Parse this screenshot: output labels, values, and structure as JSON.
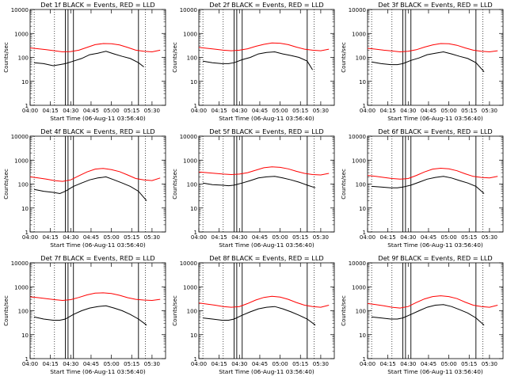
{
  "colors": {
    "events": "#000000",
    "lld": "#ff0000",
    "axes": "#000000",
    "background": "#ffffff"
  },
  "chart_data": [
    {
      "type": "line",
      "title": "Det 1f BLACK = Events, RED = LLD",
      "xlabel": "Start Time (06-Aug-11 03:56:40)",
      "ylabel": "Counts/sec",
      "xlim": [
        "04:00",
        "05:40"
      ],
      "ylim": [
        1,
        10000
      ],
      "y_scale": "log",
      "x_ticks": [
        "04:00",
        "04:15",
        "04:30",
        "04:45",
        "05:00",
        "05:15",
        "05:30"
      ],
      "y_ticks": [
        "1",
        "10",
        "100",
        "1000",
        "10000"
      ],
      "dotted_vlines": [
        "04:03",
        "04:18",
        "05:25"
      ],
      "solid_vlines": [
        "04:26",
        "04:28",
        "04:32",
        "05:20"
      ],
      "series": [
        {
          "name": "Events",
          "x": [
            "04:03",
            "04:10",
            "04:17",
            "04:22",
            "04:26",
            "04:32",
            "04:38",
            "04:44",
            "04:50",
            "04:56",
            "05:02",
            "05:08",
            "05:14",
            "05:20",
            "05:24"
          ],
          "values": [
            60,
            55,
            45,
            50,
            55,
            70,
            90,
            130,
            150,
            180,
            140,
            110,
            90,
            60,
            40
          ]
        },
        {
          "name": "LLD",
          "x": [
            "04:00",
            "04:06",
            "04:12",
            "04:18",
            "04:24",
            "04:30",
            "04:36",
            "04:42",
            "04:48",
            "04:54",
            "05:00",
            "05:06",
            "05:12",
            "05:18",
            "05:24",
            "05:30",
            "05:36"
          ],
          "values": [
            250,
            230,
            210,
            190,
            170,
            175,
            200,
            260,
            340,
            380,
            370,
            330,
            260,
            200,
            180,
            170,
            200
          ]
        }
      ]
    },
    {
      "type": "line",
      "title": "Det 2f BLACK = Events, RED = LLD",
      "xlabel": "Start Time (06-Aug-11 03:56:40)",
      "ylabel": "Counts/sec",
      "xlim": [
        "04:00",
        "05:40"
      ],
      "ylim": [
        1,
        10000
      ],
      "y_scale": "log",
      "x_ticks": [
        "04:00",
        "04:15",
        "04:30",
        "04:45",
        "05:00",
        "05:15",
        "05:30"
      ],
      "y_ticks": [
        "1",
        "10",
        "100",
        "1000",
        "10000"
      ],
      "dotted_vlines": [
        "04:03",
        "04:18",
        "05:25"
      ],
      "solid_vlines": [
        "04:26",
        "04:28",
        "04:32",
        "05:20"
      ],
      "series": [
        {
          "name": "Events",
          "x": [
            "04:03",
            "04:10",
            "04:17",
            "04:22",
            "04:26",
            "04:32",
            "04:38",
            "04:44",
            "04:50",
            "04:56",
            "05:02",
            "05:08",
            "05:14",
            "05:20",
            "05:24"
          ],
          "values": [
            70,
            60,
            55,
            55,
            60,
            80,
            100,
            140,
            160,
            170,
            140,
            120,
            100,
            70,
            30
          ]
        },
        {
          "name": "LLD",
          "x": [
            "04:00",
            "04:06",
            "04:12",
            "04:18",
            "04:24",
            "04:30",
            "04:36",
            "04:42",
            "04:48",
            "04:54",
            "05:00",
            "05:06",
            "05:12",
            "05:18",
            "05:24",
            "05:30",
            "05:36"
          ],
          "values": [
            260,
            240,
            220,
            200,
            190,
            200,
            230,
            290,
            350,
            400,
            390,
            340,
            270,
            220,
            200,
            190,
            220
          ]
        }
      ]
    },
    {
      "type": "line",
      "title": "Det 3f BLACK = Events, RED = LLD",
      "xlabel": "Start Time (06-Aug-11 03:56:40)",
      "ylabel": "Counts/sec",
      "xlim": [
        "04:00",
        "05:40"
      ],
      "ylim": [
        1,
        10000
      ],
      "y_scale": "log",
      "x_ticks": [
        "04:00",
        "04:15",
        "04:30",
        "04:45",
        "05:00",
        "05:15",
        "05:30"
      ],
      "y_ticks": [
        "1",
        "10",
        "100",
        "1000",
        "10000"
      ],
      "dotted_vlines": [
        "04:03",
        "04:18",
        "05:25"
      ],
      "solid_vlines": [
        "04:26",
        "04:28",
        "04:32",
        "05:20"
      ],
      "series": [
        {
          "name": "Events",
          "x": [
            "04:03",
            "04:10",
            "04:17",
            "04:22",
            "04:26",
            "04:32",
            "04:38",
            "04:44",
            "04:50",
            "04:56",
            "05:02",
            "05:08",
            "05:14",
            "05:20",
            "05:26"
          ],
          "values": [
            65,
            55,
            50,
            50,
            55,
            75,
            95,
            130,
            150,
            170,
            140,
            110,
            90,
            60,
            25
          ]
        },
        {
          "name": "LLD",
          "x": [
            "04:00",
            "04:06",
            "04:12",
            "04:18",
            "04:24",
            "04:30",
            "04:36",
            "04:42",
            "04:48",
            "04:54",
            "05:00",
            "05:06",
            "05:12",
            "05:18",
            "05:24",
            "05:30",
            "05:36"
          ],
          "values": [
            240,
            220,
            200,
            185,
            170,
            180,
            210,
            270,
            330,
            380,
            370,
            320,
            250,
            200,
            180,
            170,
            190
          ]
        }
      ]
    },
    {
      "type": "line",
      "title": "Det 4f BLACK = Events, RED = LLD",
      "xlabel": "Start Time (06-Aug-11 03:56:40)",
      "ylabel": "Counts/sec",
      "xlim": [
        "04:00",
        "05:40"
      ],
      "ylim": [
        1,
        10000
      ],
      "y_scale": "log",
      "x_ticks": [
        "04:00",
        "04:15",
        "04:30",
        "04:45",
        "05:00",
        "05:15",
        "05:30"
      ],
      "y_ticks": [
        "1",
        "10",
        "100",
        "1000",
        "10000"
      ],
      "dotted_vlines": [
        "04:03",
        "04:18",
        "05:25"
      ],
      "solid_vlines": [
        "04:26",
        "04:28",
        "04:32",
        "05:20"
      ],
      "series": [
        {
          "name": "Events",
          "x": [
            "04:03",
            "04:10",
            "04:17",
            "04:22",
            "04:26",
            "04:32",
            "04:38",
            "04:44",
            "04:50",
            "04:56",
            "05:02",
            "05:08",
            "05:14",
            "05:20",
            "05:26"
          ],
          "values": [
            60,
            50,
            45,
            40,
            50,
            80,
            110,
            150,
            180,
            200,
            150,
            110,
            80,
            50,
            20
          ]
        },
        {
          "name": "LLD",
          "x": [
            "04:00",
            "04:06",
            "04:12",
            "04:18",
            "04:24",
            "04:30",
            "04:36",
            "04:42",
            "04:48",
            "04:54",
            "05:00",
            "05:06",
            "05:12",
            "05:18",
            "05:24",
            "05:30",
            "05:36"
          ],
          "values": [
            200,
            180,
            160,
            140,
            130,
            150,
            220,
            320,
            420,
            450,
            400,
            330,
            240,
            170,
            150,
            140,
            180
          ]
        }
      ]
    },
    {
      "type": "line",
      "title": "Det 5f BLACK = Events, RED = LLD",
      "xlabel": "Start Time (06-Aug-11 03:56:40)",
      "ylabel": "Counts/sec",
      "xlim": [
        "04:00",
        "05:40"
      ],
      "ylim": [
        1,
        10000
      ],
      "y_scale": "log",
      "x_ticks": [
        "04:00",
        "04:15",
        "04:30",
        "04:45",
        "05:00",
        "05:15",
        "05:30"
      ],
      "y_ticks": [
        "1",
        "10",
        "100",
        "1000",
        "10000"
      ],
      "dotted_vlines": [
        "04:03",
        "04:18",
        "05:25"
      ],
      "solid_vlines": [
        "04:26",
        "04:28",
        "04:32",
        "05:20"
      ],
      "series": [
        {
          "name": "Events",
          "x": [
            "04:03",
            "04:10",
            "04:17",
            "04:22",
            "04:26",
            "04:32",
            "04:38",
            "04:44",
            "04:50",
            "04:56",
            "05:02",
            "05:08",
            "05:14",
            "05:20",
            "05:26"
          ],
          "values": [
            110,
            95,
            90,
            85,
            90,
            110,
            140,
            180,
            200,
            210,
            180,
            150,
            120,
            90,
            70
          ]
        },
        {
          "name": "LLD",
          "x": [
            "04:00",
            "04:06",
            "04:12",
            "04:18",
            "04:24",
            "04:30",
            "04:36",
            "04:42",
            "04:48",
            "04:54",
            "05:00",
            "05:06",
            "05:12",
            "05:18",
            "05:24",
            "05:30",
            "05:36"
          ],
          "values": [
            320,
            300,
            280,
            260,
            250,
            260,
            300,
            380,
            480,
            520,
            500,
            430,
            340,
            280,
            250,
            240,
            280
          ]
        }
      ]
    },
    {
      "type": "line",
      "title": "Det 6f BLACK = Events, RED = LLD",
      "xlabel": "Start Time (06-Aug-11 03:56:40)",
      "ylabel": "Counts/sec",
      "xlim": [
        "04:00",
        "05:40"
      ],
      "ylim": [
        1,
        10000
      ],
      "y_scale": "log",
      "x_ticks": [
        "04:00",
        "04:15",
        "04:30",
        "04:45",
        "05:00",
        "05:15",
        "05:30"
      ],
      "y_ticks": [
        "1",
        "10",
        "100",
        "1000",
        "10000"
      ],
      "dotted_vlines": [
        "04:03",
        "04:18",
        "05:25"
      ],
      "solid_vlines": [
        "04:26",
        "04:28",
        "04:32",
        "05:20"
      ],
      "series": [
        {
          "name": "Events",
          "x": [
            "04:03",
            "04:10",
            "04:17",
            "04:22",
            "04:26",
            "04:32",
            "04:38",
            "04:44",
            "04:50",
            "04:56",
            "05:02",
            "05:08",
            "05:14",
            "05:20",
            "05:26"
          ],
          "values": [
            80,
            75,
            70,
            70,
            75,
            90,
            120,
            160,
            190,
            210,
            180,
            140,
            110,
            80,
            40
          ]
        },
        {
          "name": "LLD",
          "x": [
            "04:00",
            "04:06",
            "04:12",
            "04:18",
            "04:24",
            "04:30",
            "04:36",
            "04:42",
            "04:48",
            "04:54",
            "05:00",
            "05:06",
            "05:12",
            "05:18",
            "05:24",
            "05:30",
            "05:36"
          ],
          "values": [
            230,
            210,
            190,
            170,
            160,
            170,
            230,
            320,
            420,
            460,
            430,
            360,
            270,
            210,
            190,
            180,
            210
          ]
        }
      ]
    },
    {
      "type": "line",
      "title": "Det 7f BLACK = Events, RED = LLD",
      "xlabel": "Start Time (06-Aug-11 03:56:40)",
      "ylabel": "Counts/sec",
      "xlim": [
        "04:00",
        "05:40"
      ],
      "ylim": [
        1,
        10000
      ],
      "y_scale": "log",
      "x_ticks": [
        "04:00",
        "04:15",
        "04:30",
        "04:45",
        "05:00",
        "05:15",
        "05:30"
      ],
      "y_ticks": [
        "1",
        "10",
        "100",
        "1000",
        "10000"
      ],
      "dotted_vlines": [
        "04:03",
        "04:18",
        "05:25"
      ],
      "solid_vlines": [
        "04:26",
        "04:28",
        "04:32",
        "05:20"
      ],
      "series": [
        {
          "name": "Events",
          "x": [
            "04:03",
            "04:10",
            "04:17",
            "04:22",
            "04:26",
            "04:32",
            "04:38",
            "04:44",
            "04:50",
            "04:56",
            "05:02",
            "05:08",
            "05:14",
            "05:20",
            "05:26"
          ],
          "values": [
            55,
            45,
            40,
            40,
            45,
            70,
            100,
            130,
            150,
            160,
            130,
            100,
            70,
            45,
            25
          ]
        },
        {
          "name": "LLD",
          "x": [
            "04:00",
            "04:06",
            "04:12",
            "04:18",
            "04:24",
            "04:30",
            "04:36",
            "04:42",
            "04:48",
            "04:54",
            "05:00",
            "05:06",
            "05:12",
            "05:18",
            "05:24",
            "05:30",
            "05:36"
          ],
          "values": [
            380,
            350,
            320,
            290,
            270,
            290,
            360,
            460,
            540,
            560,
            520,
            440,
            350,
            300,
            280,
            270,
            300
          ]
        }
      ]
    },
    {
      "type": "line",
      "title": "Det 8f BLACK = Events, RED = LLD",
      "xlabel": "Start Time (06-Aug-11 03:56:40)",
      "ylabel": "Counts/sec",
      "xlim": [
        "04:00",
        "05:40"
      ],
      "ylim": [
        1,
        10000
      ],
      "y_scale": "log",
      "x_ticks": [
        "04:00",
        "04:15",
        "04:30",
        "04:45",
        "05:00",
        "05:15",
        "05:30"
      ],
      "y_ticks": [
        "1",
        "10",
        "100",
        "1000",
        "10000"
      ],
      "dotted_vlines": [
        "04:03",
        "04:18",
        "05:25"
      ],
      "solid_vlines": [
        "04:26",
        "04:28",
        "04:32",
        "05:20"
      ],
      "series": [
        {
          "name": "Events",
          "x": [
            "04:03",
            "04:10",
            "04:17",
            "04:22",
            "04:26",
            "04:32",
            "04:38",
            "04:44",
            "04:50",
            "04:56",
            "05:02",
            "05:08",
            "05:14",
            "05:20",
            "05:26"
          ],
          "values": [
            50,
            45,
            40,
            40,
            45,
            65,
            90,
            120,
            140,
            150,
            120,
            90,
            65,
            45,
            25
          ]
        },
        {
          "name": "LLD",
          "x": [
            "04:00",
            "04:06",
            "04:12",
            "04:18",
            "04:24",
            "04:30",
            "04:36",
            "04:42",
            "04:48",
            "04:54",
            "05:00",
            "05:06",
            "05:12",
            "05:18",
            "05:24",
            "05:30",
            "05:36"
          ],
          "values": [
            210,
            190,
            170,
            150,
            140,
            150,
            200,
            280,
            360,
            400,
            370,
            300,
            220,
            170,
            150,
            140,
            170
          ]
        }
      ]
    },
    {
      "type": "line",
      "title": "Det 9f BLACK = Events, RED = LLD",
      "xlabel": "Start Time (06-Aug-11 03:56:40)",
      "ylabel": "Counts/sec",
      "xlim": [
        "04:00",
        "05:40"
      ],
      "ylim": [
        1,
        10000
      ],
      "y_scale": "log",
      "x_ticks": [
        "04:00",
        "04:15",
        "04:30",
        "04:45",
        "05:00",
        "05:15",
        "05:30"
      ],
      "y_ticks": [
        "1",
        "10",
        "100",
        "1000",
        "10000"
      ],
      "dotted_vlines": [
        "04:03",
        "04:18",
        "05:25"
      ],
      "solid_vlines": [
        "04:26",
        "04:28",
        "04:32",
        "05:20"
      ],
      "series": [
        {
          "name": "Events",
          "x": [
            "04:03",
            "04:10",
            "04:17",
            "04:22",
            "04:26",
            "04:32",
            "04:38",
            "04:44",
            "04:50",
            "04:56",
            "05:02",
            "05:08",
            "05:14",
            "05:20",
            "05:26"
          ],
          "values": [
            55,
            50,
            45,
            45,
            50,
            70,
            100,
            140,
            170,
            180,
            150,
            110,
            80,
            50,
            25
          ]
        },
        {
          "name": "LLD",
          "x": [
            "04:00",
            "04:06",
            "04:12",
            "04:18",
            "04:24",
            "04:30",
            "04:36",
            "04:42",
            "04:48",
            "04:54",
            "05:00",
            "05:06",
            "05:12",
            "05:18",
            "05:24",
            "05:30",
            "05:36"
          ],
          "values": [
            200,
            180,
            160,
            140,
            130,
            150,
            220,
            310,
            390,
            420,
            390,
            320,
            230,
            170,
            150,
            140,
            170
          ]
        }
      ]
    }
  ]
}
